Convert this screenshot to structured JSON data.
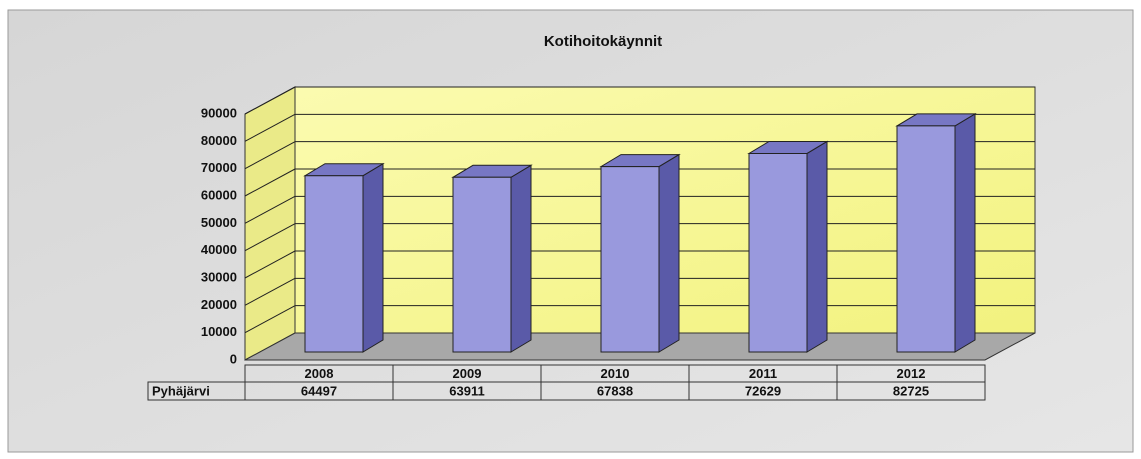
{
  "chart_data": {
    "type": "bar",
    "title": "Kotihoitokäynnit",
    "categories": [
      "2008",
      "2009",
      "2010",
      "2011",
      "2012"
    ],
    "series": [
      {
        "name": "Pyhäjärvi",
        "color": "#9999dd",
        "values": [
          64497,
          63911,
          67838,
          72629,
          82725
        ]
      }
    ],
    "ylim": [
      0,
      90000
    ],
    "yticks": [
      0,
      10000,
      20000,
      30000,
      40000,
      50000,
      60000,
      70000,
      80000,
      90000
    ],
    "grid": true
  }
}
